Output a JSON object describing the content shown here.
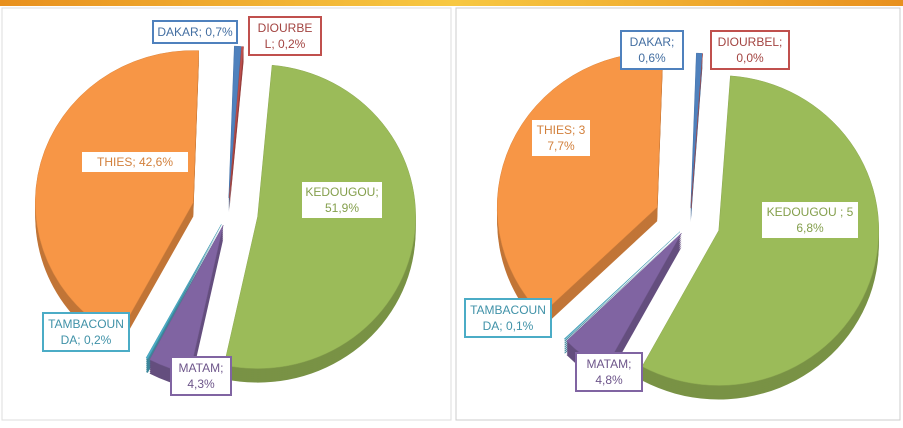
{
  "chart_data": [
    {
      "type": "pie",
      "values": [
        0.7,
        0.2,
        51.9,
        4.3,
        0.2,
        42.6
      ],
      "value_labels": [
        "DAKAR; 0,7%",
        "DIOURBEL; 0,2%",
        "KEDOUGOU; 51,9%",
        "MATAM; 4,3%",
        "TAMBACOUNDA; 0,2%",
        "THIES; 42,6%"
      ],
      "colors": [
        "#4f81bd",
        "#c0504d",
        "#9bbb59",
        "#8064a2",
        "#4bacc6",
        "#f79646"
      ]
    },
    {
      "type": "pie",
      "values": [
        0.6,
        0.0,
        56.8,
        4.8,
        0.1,
        37.7
      ],
      "value_labels": [
        "DAKAR; 0,6%",
        "DIOURBEL; 0,0%",
        "KEDOUGOU ; 56,8%",
        "MATAM; 4,8%",
        "TAMBACOUNDA; 0,1%",
        "THIES; 37,7%"
      ],
      "colors": [
        "#4f81bd",
        "#c0504d",
        "#9bbb59",
        "#8064a2",
        "#4bacc6",
        "#f79646"
      ]
    }
  ]
}
